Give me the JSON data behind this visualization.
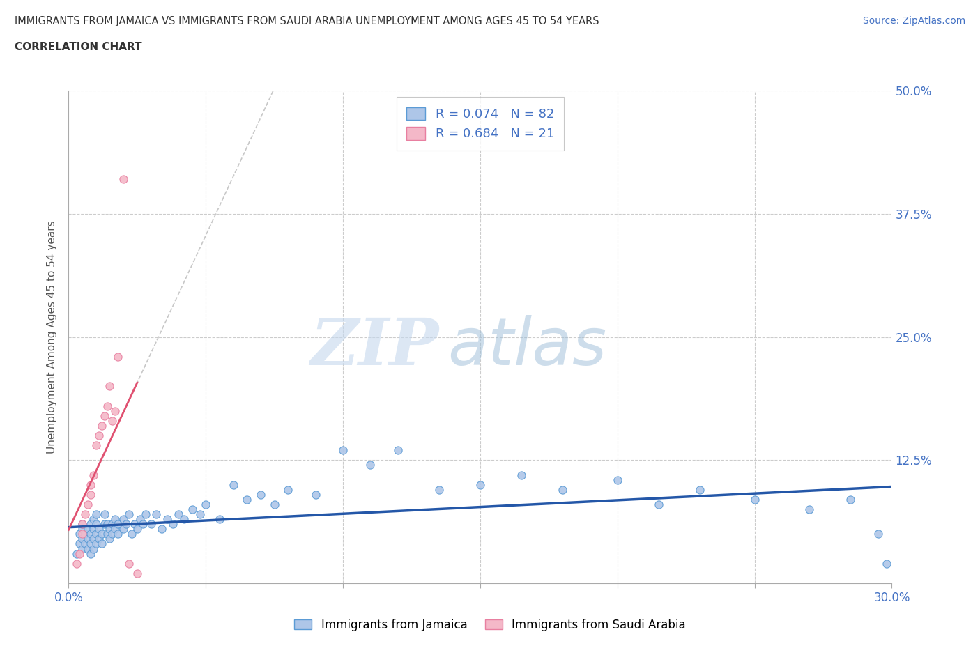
{
  "title_line1": "IMMIGRANTS FROM JAMAICA VS IMMIGRANTS FROM SAUDI ARABIA UNEMPLOYMENT AMONG AGES 45 TO 54 YEARS",
  "title_line2": "CORRELATION CHART",
  "source_text": "Source: ZipAtlas.com",
  "ylabel": "Unemployment Among Ages 45 to 54 years",
  "xlim": [
    0.0,
    0.3
  ],
  "ylim": [
    0.0,
    0.5
  ],
  "xticks": [
    0.0,
    0.05,
    0.1,
    0.15,
    0.2,
    0.25,
    0.3
  ],
  "yticks": [
    0.0,
    0.125,
    0.25,
    0.375,
    0.5
  ],
  "watermark_zip": "ZIP",
  "watermark_atlas": "atlas",
  "jamaica_color": "#aec6e8",
  "jamaica_edge_color": "#5b9bd5",
  "saudi_color": "#f4b8c8",
  "saudi_edge_color": "#e87fa0",
  "jamaica_R": 0.074,
  "jamaica_N": 82,
  "saudi_R": 0.684,
  "saudi_N": 21,
  "jamaica_regression_color": "#2457a8",
  "saudi_regression_color": "#e05070",
  "saudi_regression_ext_color": "#c8c8c8",
  "legend_label_jamaica": "Immigrants from Jamaica",
  "legend_label_saudi": "Immigrants from Saudi Arabia",
  "jamaica_x": [
    0.003,
    0.004,
    0.004,
    0.005,
    0.005,
    0.005,
    0.005,
    0.006,
    0.006,
    0.007,
    0.007,
    0.007,
    0.008,
    0.008,
    0.008,
    0.008,
    0.009,
    0.009,
    0.009,
    0.009,
    0.01,
    0.01,
    0.01,
    0.01,
    0.011,
    0.011,
    0.012,
    0.012,
    0.013,
    0.013,
    0.014,
    0.014,
    0.015,
    0.015,
    0.016,
    0.016,
    0.017,
    0.017,
    0.018,
    0.018,
    0.02,
    0.02,
    0.021,
    0.022,
    0.023,
    0.024,
    0.025,
    0.026,
    0.027,
    0.028,
    0.03,
    0.032,
    0.034,
    0.036,
    0.038,
    0.04,
    0.042,
    0.045,
    0.048,
    0.05,
    0.055,
    0.06,
    0.065,
    0.07,
    0.075,
    0.08,
    0.09,
    0.1,
    0.11,
    0.12,
    0.135,
    0.15,
    0.165,
    0.18,
    0.2,
    0.215,
    0.23,
    0.25,
    0.27,
    0.285,
    0.295,
    0.298
  ],
  "jamaica_y": [
    0.03,
    0.04,
    0.05,
    0.035,
    0.045,
    0.055,
    0.06,
    0.04,
    0.05,
    0.035,
    0.045,
    0.055,
    0.03,
    0.04,
    0.05,
    0.06,
    0.035,
    0.045,
    0.055,
    0.065,
    0.04,
    0.05,
    0.06,
    0.07,
    0.045,
    0.055,
    0.04,
    0.05,
    0.06,
    0.07,
    0.05,
    0.06,
    0.045,
    0.055,
    0.05,
    0.06,
    0.055,
    0.065,
    0.05,
    0.06,
    0.055,
    0.065,
    0.06,
    0.07,
    0.05,
    0.06,
    0.055,
    0.065,
    0.06,
    0.07,
    0.06,
    0.07,
    0.055,
    0.065,
    0.06,
    0.07,
    0.065,
    0.075,
    0.07,
    0.08,
    0.065,
    0.1,
    0.085,
    0.09,
    0.08,
    0.095,
    0.09,
    0.135,
    0.12,
    0.135,
    0.095,
    0.1,
    0.11,
    0.095,
    0.105,
    0.08,
    0.095,
    0.085,
    0.075,
    0.085,
    0.05,
    0.02
  ],
  "saudi_x": [
    0.003,
    0.004,
    0.005,
    0.005,
    0.006,
    0.007,
    0.008,
    0.008,
    0.009,
    0.01,
    0.011,
    0.012,
    0.013,
    0.014,
    0.015,
    0.016,
    0.017,
    0.018,
    0.02,
    0.022,
    0.025
  ],
  "saudi_y": [
    0.02,
    0.03,
    0.05,
    0.06,
    0.07,
    0.08,
    0.09,
    0.1,
    0.11,
    0.14,
    0.15,
    0.16,
    0.17,
    0.18,
    0.2,
    0.165,
    0.175,
    0.23,
    0.41,
    0.02,
    0.01
  ]
}
